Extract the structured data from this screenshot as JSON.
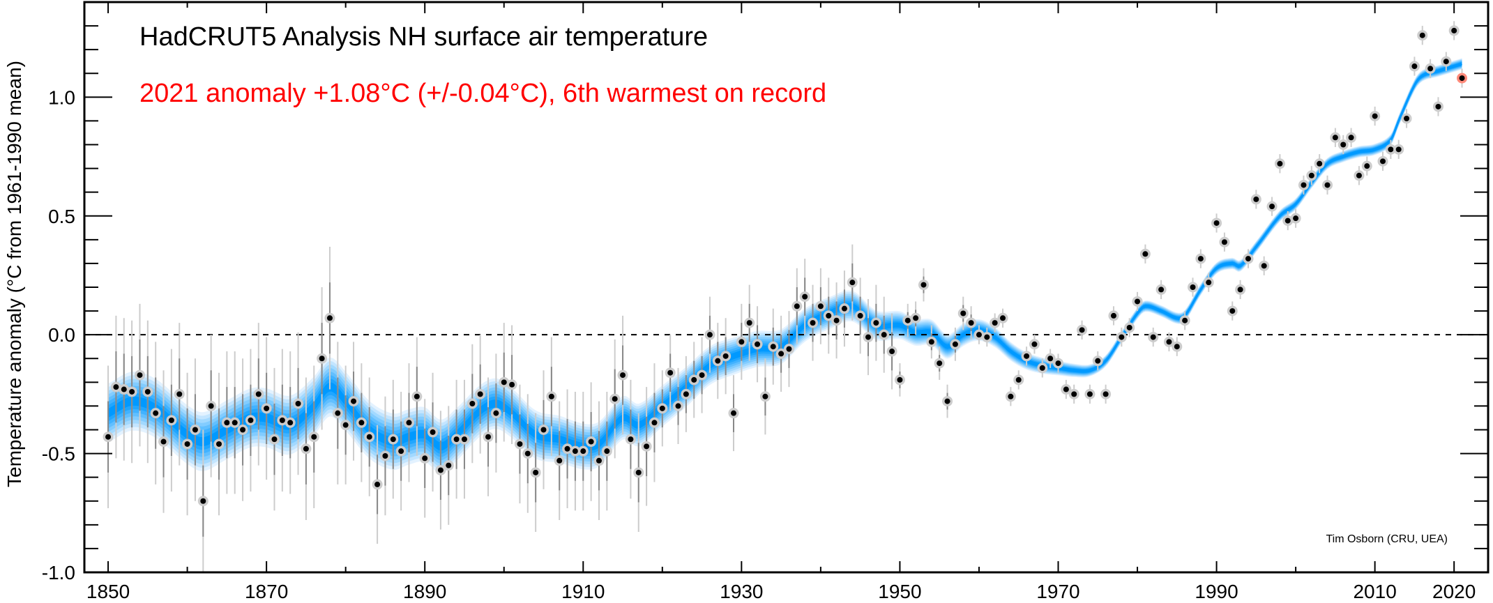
{
  "chart_data": {
    "type": "scatter",
    "title": "HadCRUT5 Analysis NH surface air temperature",
    "subtitle": "2021 anomaly +1.08°C (+/-0.04°C), 6th warmest on record",
    "xlabel": "",
    "ylabel": "Temperature anomaly (°C from 1961-1990 mean)",
    "credit": "Tim Osborn (CRU, UEA)",
    "xlim": [
      1847,
      2024.3
    ],
    "ylim": [
      -1.0,
      1.4
    ],
    "x_major_ticks": [
      1850,
      1870,
      1890,
      1910,
      1930,
      1950,
      1970,
      1990,
      2010,
      2020
    ],
    "x_tick_labels": [
      "1850",
      "1870",
      "1890",
      "1910",
      "1930",
      "1950",
      "1970",
      "1990",
      "2010",
      "2020"
    ],
    "x_minor_ticks": [
      1860,
      1880,
      1900,
      1920,
      1940,
      1960,
      1980,
      2000
    ],
    "y_major_ticks": [
      -1.0,
      -0.5,
      0.0,
      0.5,
      1.0
    ],
    "y_tick_labels": [
      "-1.0",
      "-0.5",
      "0.0",
      "0.5",
      "1.0"
    ],
    "y_minor_step": 0.1,
    "reference_line": 0.0,
    "grid": false,
    "legend": "none",
    "colors": {
      "points": "#000000",
      "point_halo": "#cccccc",
      "highlight": "#ff0000",
      "highlight_halo": "#ff8a7a",
      "error_outer": "#cccccc",
      "error_inner": "#888888",
      "smooth_core": "#0099ff",
      "smooth_edge": "#e3f2ff",
      "subtitle": "#ff0000"
    },
    "highlight_year": 2021,
    "series": [
      {
        "name": "Annual anomaly",
        "years": [
          1850,
          1851,
          1852,
          1853,
          1854,
          1855,
          1856,
          1857,
          1858,
          1859,
          1860,
          1861,
          1862,
          1863,
          1864,
          1865,
          1866,
          1867,
          1868,
          1869,
          1870,
          1871,
          1872,
          1873,
          1874,
          1875,
          1876,
          1877,
          1878,
          1879,
          1880,
          1881,
          1882,
          1883,
          1884,
          1885,
          1886,
          1887,
          1888,
          1889,
          1890,
          1891,
          1892,
          1893,
          1894,
          1895,
          1896,
          1897,
          1898,
          1899,
          1900,
          1901,
          1902,
          1903,
          1904,
          1905,
          1906,
          1907,
          1908,
          1909,
          1910,
          1911,
          1912,
          1913,
          1914,
          1915,
          1916,
          1917,
          1918,
          1919,
          1920,
          1921,
          1922,
          1923,
          1924,
          1925,
          1926,
          1927,
          1928,
          1929,
          1930,
          1931,
          1932,
          1933,
          1934,
          1935,
          1936,
          1937,
          1938,
          1939,
          1940,
          1941,
          1942,
          1943,
          1944,
          1945,
          1946,
          1947,
          1948,
          1949,
          1950,
          1951,
          1952,
          1953,
          1954,
          1955,
          1956,
          1957,
          1958,
          1959,
          1960,
          1961,
          1962,
          1963,
          1964,
          1965,
          1966,
          1967,
          1968,
          1969,
          1970,
          1971,
          1972,
          1973,
          1974,
          1975,
          1976,
          1977,
          1978,
          1979,
          1980,
          1981,
          1982,
          1983,
          1984,
          1985,
          1986,
          1987,
          1988,
          1989,
          1990,
          1991,
          1992,
          1993,
          1994,
          1995,
          1996,
          1997,
          1998,
          1999,
          2000,
          2001,
          2002,
          2003,
          2004,
          2005,
          2006,
          2007,
          2008,
          2009,
          2010,
          2011,
          2012,
          2013,
          2014,
          2015,
          2016,
          2017,
          2018,
          2019,
          2020,
          2021
        ],
        "values": [
          -0.43,
          -0.22,
          -0.23,
          -0.24,
          -0.17,
          -0.24,
          -0.33,
          -0.45,
          -0.36,
          -0.25,
          -0.46,
          -0.4,
          -0.7,
          -0.3,
          -0.46,
          -0.37,
          -0.37,
          -0.4,
          -0.36,
          -0.25,
          -0.31,
          -0.44,
          -0.36,
          -0.37,
          -0.29,
          -0.48,
          -0.43,
          -0.1,
          0.07,
          -0.33,
          -0.38,
          -0.28,
          -0.37,
          -0.43,
          -0.63,
          -0.51,
          -0.44,
          -0.49,
          -0.37,
          -0.26,
          -0.52,
          -0.41,
          -0.57,
          -0.55,
          -0.44,
          -0.44,
          -0.29,
          -0.25,
          -0.43,
          -0.33,
          -0.2,
          -0.21,
          -0.46,
          -0.5,
          -0.58,
          -0.4,
          -0.26,
          -0.53,
          -0.48,
          -0.49,
          -0.49,
          -0.45,
          -0.53,
          -0.49,
          -0.27,
          -0.17,
          -0.44,
          -0.58,
          -0.47,
          -0.37,
          -0.31,
          -0.16,
          -0.3,
          -0.25,
          -0.19,
          -0.17,
          0.0,
          -0.11,
          -0.09,
          -0.33,
          -0.03,
          0.05,
          -0.04,
          -0.26,
          -0.05,
          -0.08,
          -0.06,
          0.12,
          0.16,
          0.05,
          0.12,
          0.08,
          0.06,
          0.11,
          0.22,
          0.08,
          -0.01,
          0.05,
          0.0,
          -0.07,
          -0.19,
          0.06,
          0.07,
          0.21,
          -0.03,
          -0.12,
          -0.28,
          -0.04,
          0.09,
          0.05,
          0.0,
          -0.01,
          0.05,
          0.07,
          -0.26,
          -0.19,
          -0.09,
          -0.04,
          -0.14,
          -0.1,
          -0.12,
          -0.23,
          -0.25,
          0.02,
          -0.25,
          -0.11,
          -0.25,
          0.08,
          -0.01,
          0.03,
          0.14,
          0.34,
          -0.01,
          0.19,
          -0.03,
          -0.05,
          0.06,
          0.2,
          0.32,
          0.22,
          0.47,
          0.39,
          0.1,
          0.19,
          0.32,
          0.57,
          0.29,
          0.54,
          0.72,
          0.48,
          0.49,
          0.63,
          0.67,
          0.72,
          0.63,
          0.83,
          0.8,
          0.83,
          0.67,
          0.71,
          0.92,
          0.73,
          0.78,
          0.78,
          0.91,
          1.13,
          1.26,
          1.12,
          0.96,
          1.15,
          1.28,
          1.08
        ]
      },
      {
        "name": "Smoothed",
        "years": [
          1850,
          1853,
          1856,
          1860,
          1862,
          1865,
          1868,
          1870,
          1873,
          1876,
          1878,
          1880,
          1883,
          1886,
          1888,
          1890,
          1892,
          1894,
          1897,
          1899,
          1901,
          1904,
          1907,
          1910,
          1912,
          1915,
          1917,
          1920,
          1923,
          1926,
          1929,
          1932,
          1935,
          1938,
          1941,
          1944,
          1947,
          1950,
          1952,
          1954,
          1956,
          1958,
          1960,
          1962,
          1964,
          1966,
          1968,
          1970,
          1972,
          1974,
          1976,
          1978,
          1980,
          1981,
          1983,
          1985,
          1986,
          1988,
          1990,
          1992,
          1993,
          1995,
          1998,
          2000,
          2002,
          2004,
          2006,
          2008,
          2010,
          2012,
          2013,
          2015,
          2016,
          2018,
          2020,
          2021
        ],
        "values": [
          -0.33,
          -0.28,
          -0.31,
          -0.42,
          -0.45,
          -0.4,
          -0.35,
          -0.35,
          -0.38,
          -0.3,
          -0.22,
          -0.28,
          -0.4,
          -0.45,
          -0.43,
          -0.42,
          -0.47,
          -0.42,
          -0.32,
          -0.29,
          -0.33,
          -0.42,
          -0.44,
          -0.47,
          -0.46,
          -0.35,
          -0.38,
          -0.3,
          -0.22,
          -0.13,
          -0.09,
          -0.06,
          -0.05,
          0.04,
          0.09,
          0.12,
          0.04,
          0.04,
          0.01,
          0.01,
          -0.05,
          0.0,
          0.02,
          -0.01,
          -0.07,
          -0.11,
          -0.13,
          -0.14,
          -0.15,
          -0.15,
          -0.11,
          -0.01,
          0.09,
          0.12,
          0.1,
          0.07,
          0.08,
          0.19,
          0.28,
          0.3,
          0.29,
          0.37,
          0.5,
          0.55,
          0.64,
          0.72,
          0.75,
          0.77,
          0.78,
          0.82,
          0.9,
          1.05,
          1.09,
          1.11,
          1.13,
          1.14
        ],
        "uncertainty_halfwidth_start": 0.12,
        "uncertainty_halfwidth_end": 0.02
      }
    ]
  }
}
